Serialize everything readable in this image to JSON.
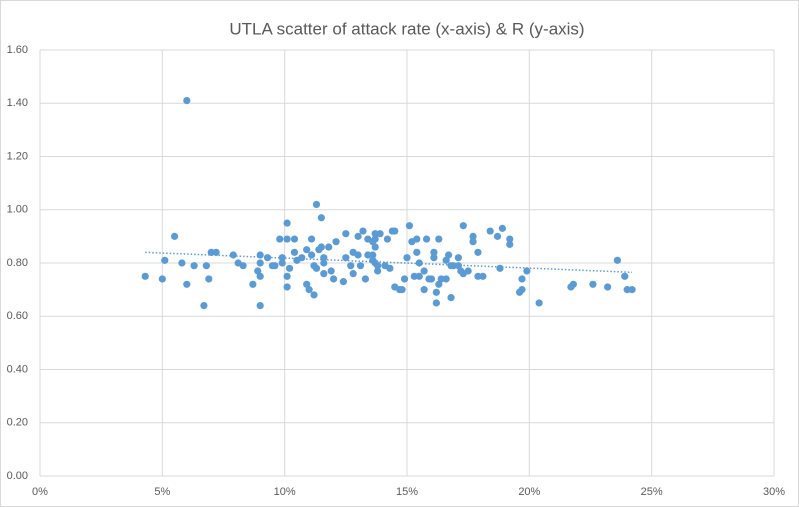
{
  "chart_data": {
    "type": "scatter",
    "title": "UTLA scatter of attack rate (x-axis) & R (y-axis)",
    "color": "#5b9bd5",
    "grid": true,
    "x": [
      4.3,
      5.0,
      5.1,
      5.5,
      5.8,
      6.0,
      6.0,
      6.3,
      6.7,
      6.8,
      6.9,
      7.0,
      7.2,
      7.9,
      8.1,
      8.3,
      8.7,
      8.9,
      9.0,
      9.0,
      9.0,
      9.0,
      9.3,
      9.5,
      9.6,
      9.8,
      9.9,
      9.9,
      10.1,
      10.1,
      10.2,
      10.1,
      10.1,
      10.4,
      10.4,
      10.5,
      10.7,
      10.9,
      10.9,
      11.0,
      11.1,
      11.1,
      11.2,
      11.2,
      11.3,
      11.3,
      11.4,
      11.5,
      11.5,
      11.6,
      11.6,
      11.6,
      11.8,
      11.9,
      12.0,
      12.1,
      12.4,
      12.5,
      12.5,
      12.7,
      12.8,
      12.8,
      13.0,
      13.0,
      13.1,
      13.2,
      13.3,
      13.4,
      13.4,
      13.6,
      13.6,
      13.6,
      13.7,
      13.7,
      13.7,
      13.7,
      13.8,
      13.8,
      13.9,
      14.1,
      14.2,
      14.3,
      14.4,
      14.5,
      14.5,
      14.7,
      14.8,
      14.9,
      15.0,
      15.1,
      15.2,
      15.3,
      15.4,
      15.4,
      15.5,
      15.5,
      15.7,
      15.7,
      15.8,
      15.9,
      16.0,
      16.1,
      16.1,
      16.2,
      16.3,
      16.2,
      16.3,
      16.4,
      16.6,
      16.6,
      16.7,
      16.8,
      16.8,
      16.9,
      17.1,
      17.1,
      17.2,
      17.3,
      17.3,
      17.5,
      17.7,
      17.7,
      17.9,
      17.9,
      18.1,
      18.4,
      18.7,
      18.8,
      18.9,
      19.2,
      19.2,
      19.6,
      19.7,
      19.7,
      19.9,
      20.4,
      21.7,
      21.8,
      22.6,
      23.2,
      23.6,
      23.9,
      24.0,
      24.2
    ],
    "values": [
      0.75,
      0.74,
      0.81,
      0.9,
      0.8,
      1.41,
      0.72,
      0.79,
      0.64,
      0.79,
      0.74,
      0.84,
      0.84,
      0.83,
      0.8,
      0.79,
      0.72,
      0.77,
      0.64,
      0.75,
      0.8,
      0.83,
      0.82,
      0.79,
      0.79,
      0.89,
      0.82,
      0.8,
      0.95,
      0.89,
      0.78,
      0.75,
      0.71,
      0.89,
      0.84,
      0.81,
      0.82,
      0.85,
      0.72,
      0.7,
      0.89,
      0.83,
      0.79,
      0.68,
      1.02,
      0.78,
      0.85,
      0.97,
      0.86,
      0.82,
      0.8,
      0.76,
      0.86,
      0.77,
      0.74,
      0.88,
      0.73,
      0.91,
      0.82,
      0.79,
      0.84,
      0.76,
      0.9,
      0.83,
      0.79,
      0.92,
      0.74,
      0.83,
      0.89,
      0.88,
      0.81,
      0.83,
      0.8,
      0.86,
      0.91,
      0.89,
      0.77,
      0.79,
      0.91,
      0.79,
      0.89,
      0.78,
      0.92,
      0.71,
      0.92,
      0.7,
      0.7,
      0.74,
      0.82,
      0.94,
      0.88,
      0.75,
      0.89,
      0.84,
      0.75,
      0.8,
      0.7,
      0.77,
      0.89,
      0.74,
      0.74,
      0.82,
      0.84,
      0.65,
      0.89,
      0.69,
      0.72,
      0.74,
      0.74,
      0.81,
      0.83,
      0.67,
      0.79,
      0.79,
      0.82,
      0.79,
      0.77,
      0.94,
      0.76,
      0.77,
      0.88,
      0.9,
      0.84,
      0.75,
      0.75,
      0.92,
      0.9,
      0.78,
      0.93,
      0.87,
      0.89,
      0.69,
      0.74,
      0.7,
      0.77,
      0.65,
      0.71,
      0.72,
      0.72,
      0.71,
      0.81,
      0.75,
      0.7,
      0.7
    ],
    "trendline": {
      "x": [
        4.3,
        24.2
      ],
      "values": [
        0.84,
        0.765
      ]
    },
    "xlim": [
      0,
      30
    ],
    "xticks": [
      {
        "value": 0,
        "label": "0%"
      },
      {
        "value": 5,
        "label": "5%"
      },
      {
        "value": 10,
        "label": "10%"
      },
      {
        "value": 15,
        "label": "15%"
      },
      {
        "value": 20,
        "label": "20%"
      },
      {
        "value": 25,
        "label": "25%"
      },
      {
        "value": 30,
        "label": "30%"
      }
    ],
    "ylim": [
      0,
      1.6
    ],
    "yticks": [
      {
        "value": 0,
        "label": "0.00"
      },
      {
        "value": 0.2,
        "label": "0.20"
      },
      {
        "value": 0.4,
        "label": "0.40"
      },
      {
        "value": 0.6,
        "label": "0.60"
      },
      {
        "value": 0.8,
        "label": "0.80"
      },
      {
        "value": 1.0,
        "label": "1.00"
      },
      {
        "value": 1.2,
        "label": "1.20"
      },
      {
        "value": 1.4,
        "label": "1.40"
      },
      {
        "value": 1.6,
        "label": "1.60"
      }
    ]
  }
}
